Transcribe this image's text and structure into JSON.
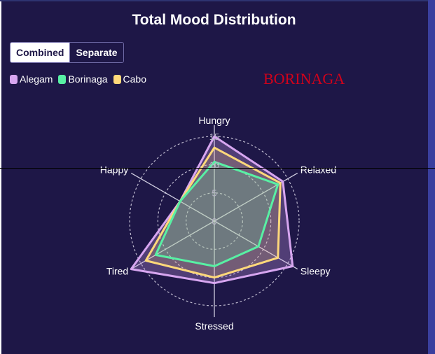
{
  "title": "Total Mood Distribution",
  "toggle": {
    "combined_label": "Combined",
    "separate_label": "Separate",
    "active": "Combined"
  },
  "watermark": "BORINAGA",
  "chart_data": {
    "type": "radar",
    "axes": [
      "Hungry",
      "Relaxed",
      "Sleepy",
      "Stressed",
      "Tired",
      "Happy"
    ],
    "ticks": [
      "0",
      "5",
      "10",
      "15"
    ],
    "max": 15,
    "legend_position": "top-left",
    "series": [
      {
        "name": "Alegam",
        "color": "#d7a6f0",
        "values": [
          15,
          14,
          16,
          11,
          17,
          7
        ]
      },
      {
        "name": "Borinaga",
        "color": "#58f0a4",
        "values": [
          10.5,
          13,
          9,
          8,
          12,
          7
        ]
      },
      {
        "name": "Cabo",
        "color": "#ffd87a",
        "values": [
          13,
          13.5,
          13,
          10,
          14,
          7
        ]
      }
    ]
  }
}
